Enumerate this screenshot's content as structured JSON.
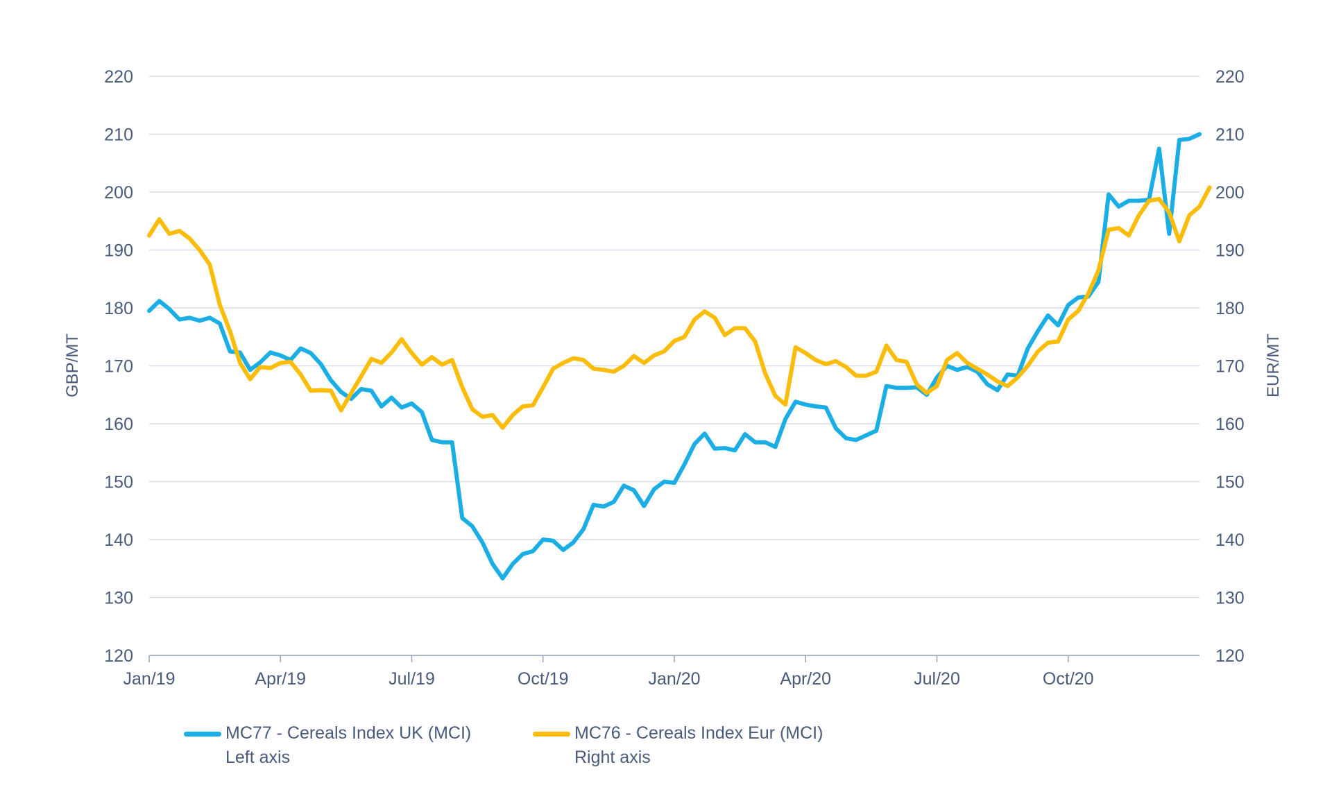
{
  "chart_data": {
    "type": "line",
    "y_left_label": "GBP/MT",
    "y_right_label": "EUR/MT",
    "y_ticks": [
      120,
      130,
      140,
      150,
      160,
      170,
      180,
      190,
      200,
      210,
      220
    ],
    "ylim": [
      120,
      220
    ],
    "x_ticks": [
      "Jan/19",
      "Apr/19",
      "Jul/19",
      "Oct/19",
      "Jan/20",
      "Apr/20",
      "Jul/20",
      "Oct/20"
    ],
    "x_tick_weeks": [
      0,
      13,
      26,
      39,
      52,
      65,
      78,
      91
    ],
    "grid": "horizontal",
    "legend_placement": "bottom-left",
    "series": [
      {
        "name": "MC77 - Cereals Index UK (MCI)",
        "axis_note": "Left axis",
        "color": "#1aaee5",
        "values": [
          179.5,
          181.2,
          179.8,
          178.0,
          178.3,
          177.8,
          178.3,
          177.3,
          172.5,
          172.3,
          169.3,
          170.6,
          172.3,
          171.8,
          171.0,
          173.0,
          172.2,
          170.3,
          167.5,
          165.5,
          164.3,
          166.0,
          165.7,
          163.0,
          164.5,
          162.8,
          163.5,
          162.0,
          157.2,
          156.8,
          156.8,
          143.7,
          142.3,
          139.5,
          135.8,
          133.3,
          135.8,
          137.5,
          138.0,
          140.0,
          139.8,
          138.2,
          139.5,
          141.8,
          146.0,
          145.7,
          146.5,
          149.3,
          148.5,
          145.8,
          148.7,
          150.0,
          149.8,
          153.0,
          156.5,
          158.3,
          155.7,
          155.8,
          155.4,
          158.2,
          156.8,
          156.8,
          156.0,
          160.8,
          163.8,
          163.3,
          163.0,
          162.8,
          159.2,
          157.5,
          157.2,
          158.0,
          158.8,
          166.5,
          166.2,
          166.2,
          166.3,
          165.0,
          168.0,
          170.0,
          169.3,
          169.8,
          169.0,
          166.8,
          165.8,
          168.5,
          168.3,
          173.0,
          176.0,
          178.7,
          177.0,
          180.5,
          181.8,
          182.0,
          184.5,
          199.6,
          197.5,
          198.5,
          198.5,
          198.7,
          207.5,
          192.8,
          209.0,
          209.2,
          210.0
        ]
      },
      {
        "name": "MC76 - Cereals Index Eur (MCI)",
        "axis_note": "Right axis",
        "color": "#fbbd09",
        "values": [
          192.5,
          195.3,
          192.8,
          193.3,
          192.0,
          190.0,
          187.5,
          180.5,
          176.0,
          170.5,
          167.7,
          169.8,
          169.6,
          170.5,
          170.7,
          168.5,
          165.7,
          165.8,
          165.7,
          162.3,
          165.3,
          168.2,
          171.2,
          170.5,
          172.3,
          174.6,
          172.2,
          170.2,
          171.5,
          170.2,
          171.0,
          166.3,
          162.5,
          161.2,
          161.5,
          159.3,
          161.5,
          163.0,
          163.2,
          166.3,
          169.5,
          170.5,
          171.3,
          171.0,
          169.5,
          169.3,
          169.0,
          170.0,
          171.7,
          170.5,
          171.8,
          172.5,
          174.3,
          175.0,
          178.0,
          179.4,
          178.3,
          175.3,
          176.5,
          176.5,
          174.2,
          168.7,
          164.8,
          163.3,
          173.2,
          172.2,
          171.0,
          170.3,
          170.8,
          169.8,
          168.3,
          168.3,
          169.0,
          173.5,
          171.0,
          170.7,
          166.8,
          165.3,
          166.5,
          171.0,
          172.2,
          170.5,
          169.5,
          168.5,
          167.3,
          166.5,
          168.0,
          170.0,
          172.5,
          174.0,
          174.2,
          178.0,
          179.5,
          182.5,
          186.5,
          193.5,
          193.8,
          192.5,
          196.0,
          198.5,
          198.8,
          196.5,
          191.5,
          196.0,
          197.5,
          200.8
        ]
      }
    ]
  },
  "legend": {
    "items": [
      {
        "label": "MC77 - Cereals Index UK (MCI)",
        "sub": "Left axis"
      },
      {
        "label": "MC76 - Cereals Index Eur (MCI)",
        "sub": "Right axis"
      }
    ]
  }
}
